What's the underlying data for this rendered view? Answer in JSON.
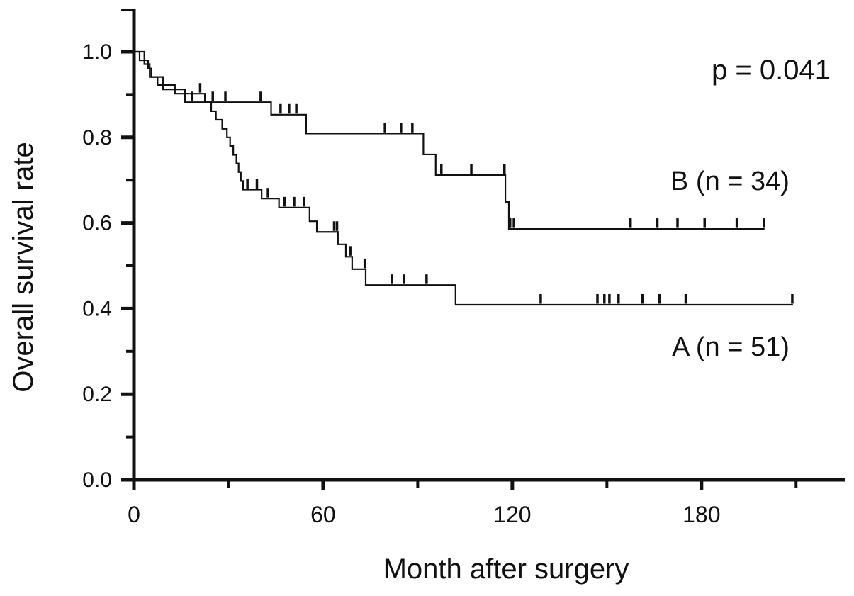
{
  "annotations": {
    "p_value": "p = 0.041",
    "series_b_label": "B (n = 34)",
    "series_a_label": "A (n = 51)"
  },
  "axes": {
    "x": {
      "title": "Month after surgery",
      "major_ticks": [
        {
          "v": 0,
          "label": "0"
        },
        {
          "v": 60,
          "label": "60"
        },
        {
          "v": 120,
          "label": "120"
        },
        {
          "v": 180,
          "label": "180"
        }
      ],
      "minor_ticks": [
        30,
        90,
        150,
        210
      ],
      "range": [
        0,
        225
      ]
    },
    "y": {
      "title": "Overall survival rate",
      "major_ticks": [
        {
          "v": 1.0,
          "label": "1.0"
        },
        {
          "v": 0.8,
          "label": "0.8"
        },
        {
          "v": 0.6,
          "label": "0.6"
        },
        {
          "v": 0.4,
          "label": "0.4"
        },
        {
          "v": 0.2,
          "label": "0.2"
        },
        {
          "v": 0.0,
          "label": "0.0"
        }
      ],
      "minor_ticks": [
        0.9,
        0.7,
        0.5,
        0.3,
        0.1
      ],
      "range": [
        0,
        1.0
      ]
    }
  },
  "chart_data": {
    "type": "line",
    "subtype": "kaplan-meier-step",
    "title": "",
    "xlabel": "Month after surgery",
    "ylabel": "Overall survival rate",
    "xlim": [
      0,
      225
    ],
    "ylim": [
      0,
      1.0
    ],
    "grid": false,
    "legend_position": "right-inline",
    "p_value": 0.041,
    "line_color": "#111111",
    "series": [
      {
        "name": "B",
        "label": "B (n = 34)",
        "n": 34,
        "end_month": 200,
        "steps": [
          [
            0,
            1.0
          ],
          [
            3.3,
            0.971
          ],
          [
            5,
            0.941
          ],
          [
            9.2,
            0.912
          ],
          [
            16.2,
            0.882
          ],
          [
            43.5,
            0.853
          ],
          [
            54.6,
            0.809
          ],
          [
            91.8,
            0.76
          ],
          [
            95.7,
            0.712
          ],
          [
            117.8,
            0.649
          ],
          [
            118.9,
            0.586
          ]
        ],
        "censors": [
          [
            18.5,
            0.882
          ],
          [
            25,
            0.882
          ],
          [
            29,
            0.882
          ],
          [
            40.2,
            0.882
          ],
          [
            46.5,
            0.853
          ],
          [
            49.2,
            0.853
          ],
          [
            51.5,
            0.853
          ],
          [
            79.6,
            0.809
          ],
          [
            84.7,
            0.809
          ],
          [
            88.3,
            0.809
          ],
          [
            97.5,
            0.712
          ],
          [
            107,
            0.712
          ],
          [
            117.5,
            0.712
          ],
          [
            119.3,
            0.586
          ],
          [
            120.5,
            0.586
          ],
          [
            157.5,
            0.586
          ],
          [
            166,
            0.586
          ],
          [
            172.4,
            0.586
          ],
          [
            181,
            0.586
          ],
          [
            191.2,
            0.586
          ],
          [
            199.8,
            0.586
          ]
        ]
      },
      {
        "name": "A",
        "label": "A (n = 51)",
        "n": 51,
        "end_month": 209,
        "steps": [
          [
            0,
            1.0
          ],
          [
            1.8,
            0.98
          ],
          [
            4.5,
            0.961
          ],
          [
            5.5,
            0.941
          ],
          [
            7.5,
            0.922
          ],
          [
            13,
            0.902
          ],
          [
            22.5,
            0.882
          ],
          [
            24.5,
            0.861
          ],
          [
            26,
            0.841
          ],
          [
            28,
            0.82
          ],
          [
            29.5,
            0.8
          ],
          [
            30.5,
            0.78
          ],
          [
            31.5,
            0.759
          ],
          [
            32.5,
            0.739
          ],
          [
            33.2,
            0.719
          ],
          [
            33.9,
            0.698
          ],
          [
            34.6,
            0.678
          ],
          [
            40.5,
            0.657
          ],
          [
            46,
            0.636
          ],
          [
            55.7,
            0.604
          ],
          [
            58,
            0.579
          ],
          [
            64.7,
            0.55
          ],
          [
            67.2,
            0.521
          ],
          [
            69.2,
            0.492
          ],
          [
            73.5,
            0.455
          ],
          [
            102,
            0.409
          ]
        ],
        "censors": [
          [
            21,
            0.902
          ],
          [
            36,
            0.678
          ],
          [
            39,
            0.678
          ],
          [
            42.5,
            0.657
          ],
          [
            47.8,
            0.636
          ],
          [
            50.8,
            0.636
          ],
          [
            54,
            0.636
          ],
          [
            63.5,
            0.579
          ],
          [
            64.4,
            0.579
          ],
          [
            68.6,
            0.521
          ],
          [
            73.2,
            0.492
          ],
          [
            81.8,
            0.455
          ],
          [
            85.6,
            0.455
          ],
          [
            92.8,
            0.455
          ],
          [
            129,
            0.409
          ],
          [
            147,
            0.409
          ],
          [
            149.2,
            0.409
          ],
          [
            150.8,
            0.409
          ],
          [
            153.7,
            0.409
          ],
          [
            161.3,
            0.409
          ],
          [
            166.7,
            0.409
          ],
          [
            175,
            0.409
          ],
          [
            208.8,
            0.409
          ]
        ]
      }
    ]
  }
}
